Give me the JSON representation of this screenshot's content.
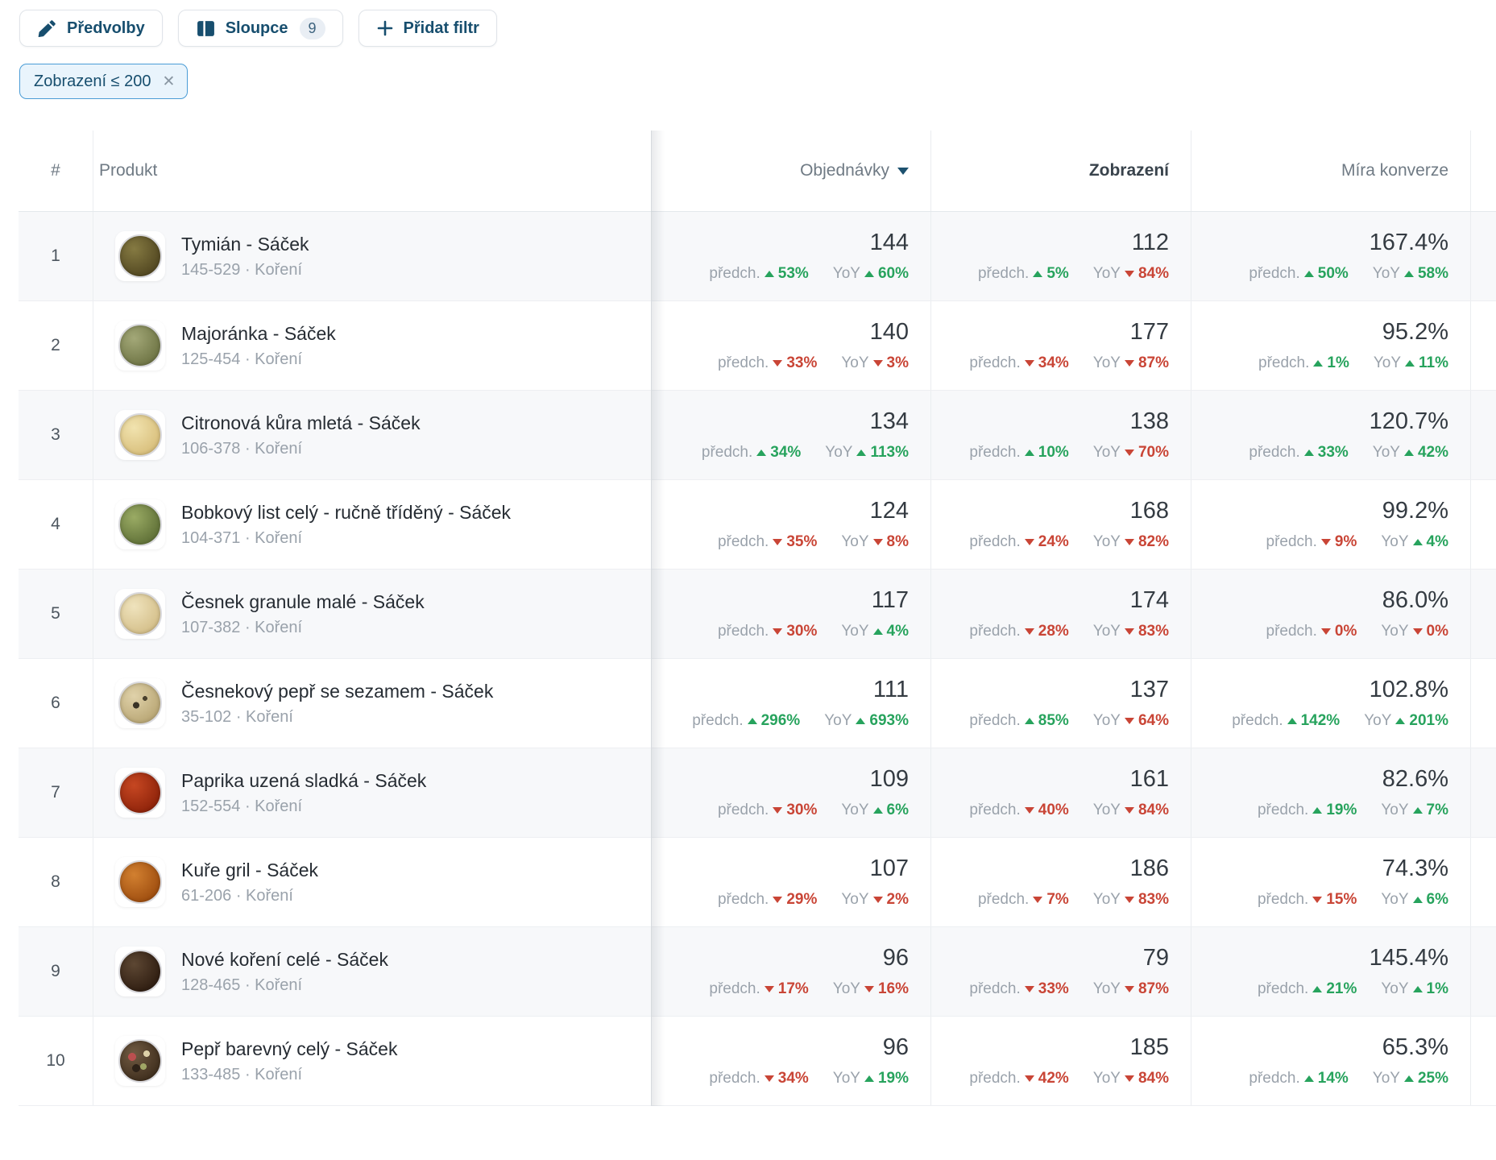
{
  "toolbar": {
    "presets": "Předvolby",
    "columns": "Sloupce",
    "columns_count": "9",
    "add_filter": "Přidat filtr"
  },
  "filter_chip": {
    "label": "Zobrazení ≤ 200"
  },
  "icons": {
    "close": "✕"
  },
  "colors": {
    "accent": "#174e6e",
    "positive": "#27a35d",
    "negative": "#c94536",
    "chip_bg": "#e9f4fc",
    "chip_border": "#4a9cd6"
  },
  "table": {
    "headers": {
      "rank": "#",
      "product": "Produkt",
      "orders": "Objednávky",
      "views": "Zobrazení",
      "conversion": "Míra konverze"
    },
    "sub_labels": {
      "prev": "předch.",
      "yoy": "YoY"
    },
    "sort": {
      "column": "Objednávky",
      "direction": "desc"
    },
    "rows": [
      {
        "rank": "1",
        "name": "Tymián - Sáček",
        "subtitle": "145-529 · Koření",
        "orders": {
          "value": "144",
          "prev": {
            "dir": "up",
            "pct": "53%"
          },
          "yoy": {
            "dir": "up",
            "pct": "60%"
          }
        },
        "views": {
          "value": "112",
          "prev": {
            "dir": "up",
            "pct": "5%"
          },
          "yoy": {
            "dir": "down",
            "pct": "84%"
          }
        },
        "conversion": {
          "value": "167.4%",
          "prev": {
            "dir": "up",
            "pct": "50%"
          },
          "yoy": {
            "dir": "up",
            "pct": "58%"
          }
        }
      },
      {
        "rank": "2",
        "name": "Majoránka - Sáček",
        "subtitle": "125-454 · Koření",
        "orders": {
          "value": "140",
          "prev": {
            "dir": "down",
            "pct": "33%"
          },
          "yoy": {
            "dir": "down",
            "pct": "3%"
          }
        },
        "views": {
          "value": "177",
          "prev": {
            "dir": "down",
            "pct": "34%"
          },
          "yoy": {
            "dir": "down",
            "pct": "87%"
          }
        },
        "conversion": {
          "value": "95.2%",
          "prev": {
            "dir": "up",
            "pct": "1%"
          },
          "yoy": {
            "dir": "up",
            "pct": "11%"
          }
        }
      },
      {
        "rank": "3",
        "name": "Citronová kůra mletá - Sáček",
        "subtitle": "106-378 · Koření",
        "orders": {
          "value": "134",
          "prev": {
            "dir": "up",
            "pct": "34%"
          },
          "yoy": {
            "dir": "up",
            "pct": "113%"
          }
        },
        "views": {
          "value": "138",
          "prev": {
            "dir": "up",
            "pct": "10%"
          },
          "yoy": {
            "dir": "down",
            "pct": "70%"
          }
        },
        "conversion": {
          "value": "120.7%",
          "prev": {
            "dir": "up",
            "pct": "33%"
          },
          "yoy": {
            "dir": "up",
            "pct": "42%"
          }
        }
      },
      {
        "rank": "4",
        "name": "Bobkový list celý - ručně tříděný - Sáček",
        "subtitle": "104-371 · Koření",
        "orders": {
          "value": "124",
          "prev": {
            "dir": "down",
            "pct": "35%"
          },
          "yoy": {
            "dir": "down",
            "pct": "8%"
          }
        },
        "views": {
          "value": "168",
          "prev": {
            "dir": "down",
            "pct": "24%"
          },
          "yoy": {
            "dir": "down",
            "pct": "82%"
          }
        },
        "conversion": {
          "value": "99.2%",
          "prev": {
            "dir": "down",
            "pct": "9%"
          },
          "yoy": {
            "dir": "up",
            "pct": "4%"
          }
        }
      },
      {
        "rank": "5",
        "name": "Česnek granule malé - Sáček",
        "subtitle": "107-382 · Koření",
        "orders": {
          "value": "117",
          "prev": {
            "dir": "down",
            "pct": "30%"
          },
          "yoy": {
            "dir": "up",
            "pct": "4%"
          }
        },
        "views": {
          "value": "174",
          "prev": {
            "dir": "down",
            "pct": "28%"
          },
          "yoy": {
            "dir": "down",
            "pct": "83%"
          }
        },
        "conversion": {
          "value": "86.0%",
          "prev": {
            "dir": "down",
            "pct": "0%"
          },
          "yoy": {
            "dir": "down",
            "pct": "0%"
          }
        }
      },
      {
        "rank": "6",
        "name": "Česnekový pepř se sezamem - Sáček",
        "subtitle": "35-102 · Koření",
        "orders": {
          "value": "111",
          "prev": {
            "dir": "up",
            "pct": "296%"
          },
          "yoy": {
            "dir": "up",
            "pct": "693%"
          }
        },
        "views": {
          "value": "137",
          "prev": {
            "dir": "up",
            "pct": "85%"
          },
          "yoy": {
            "dir": "down",
            "pct": "64%"
          }
        },
        "conversion": {
          "value": "102.8%",
          "prev": {
            "dir": "up",
            "pct": "142%"
          },
          "yoy": {
            "dir": "up",
            "pct": "201%"
          }
        }
      },
      {
        "rank": "7",
        "name": "Paprika uzená sladká - Sáček",
        "subtitle": "152-554 · Koření",
        "orders": {
          "value": "109",
          "prev": {
            "dir": "down",
            "pct": "30%"
          },
          "yoy": {
            "dir": "up",
            "pct": "6%"
          }
        },
        "views": {
          "value": "161",
          "prev": {
            "dir": "down",
            "pct": "40%"
          },
          "yoy": {
            "dir": "down",
            "pct": "84%"
          }
        },
        "conversion": {
          "value": "82.6%",
          "prev": {
            "dir": "up",
            "pct": "19%"
          },
          "yoy": {
            "dir": "up",
            "pct": "7%"
          }
        }
      },
      {
        "rank": "8",
        "name": "Kuře gril - Sáček",
        "subtitle": "61-206 · Koření",
        "orders": {
          "value": "107",
          "prev": {
            "dir": "down",
            "pct": "29%"
          },
          "yoy": {
            "dir": "down",
            "pct": "2%"
          }
        },
        "views": {
          "value": "186",
          "prev": {
            "dir": "down",
            "pct": "7%"
          },
          "yoy": {
            "dir": "down",
            "pct": "83%"
          }
        },
        "conversion": {
          "value": "74.3%",
          "prev": {
            "dir": "down",
            "pct": "15%"
          },
          "yoy": {
            "dir": "up",
            "pct": "6%"
          }
        }
      },
      {
        "rank": "9",
        "name": "Nové koření celé - Sáček",
        "subtitle": "128-465 · Koření",
        "orders": {
          "value": "96",
          "prev": {
            "dir": "down",
            "pct": "17%"
          },
          "yoy": {
            "dir": "down",
            "pct": "16%"
          }
        },
        "views": {
          "value": "79",
          "prev": {
            "dir": "down",
            "pct": "33%"
          },
          "yoy": {
            "dir": "down",
            "pct": "87%"
          }
        },
        "conversion": {
          "value": "145.4%",
          "prev": {
            "dir": "up",
            "pct": "21%"
          },
          "yoy": {
            "dir": "up",
            "pct": "1%"
          }
        }
      },
      {
        "rank": "10",
        "name": "Pepř barevný celý - Sáček",
        "subtitle": "133-485 · Koření",
        "orders": {
          "value": "96",
          "prev": {
            "dir": "down",
            "pct": "34%"
          },
          "yoy": {
            "dir": "up",
            "pct": "19%"
          }
        },
        "views": {
          "value": "185",
          "prev": {
            "dir": "down",
            "pct": "42%"
          },
          "yoy": {
            "dir": "down",
            "pct": "84%"
          }
        },
        "conversion": {
          "value": "65.3%",
          "prev": {
            "dir": "up",
            "pct": "14%"
          },
          "yoy": {
            "dir": "up",
            "pct": "25%"
          }
        }
      }
    ]
  }
}
